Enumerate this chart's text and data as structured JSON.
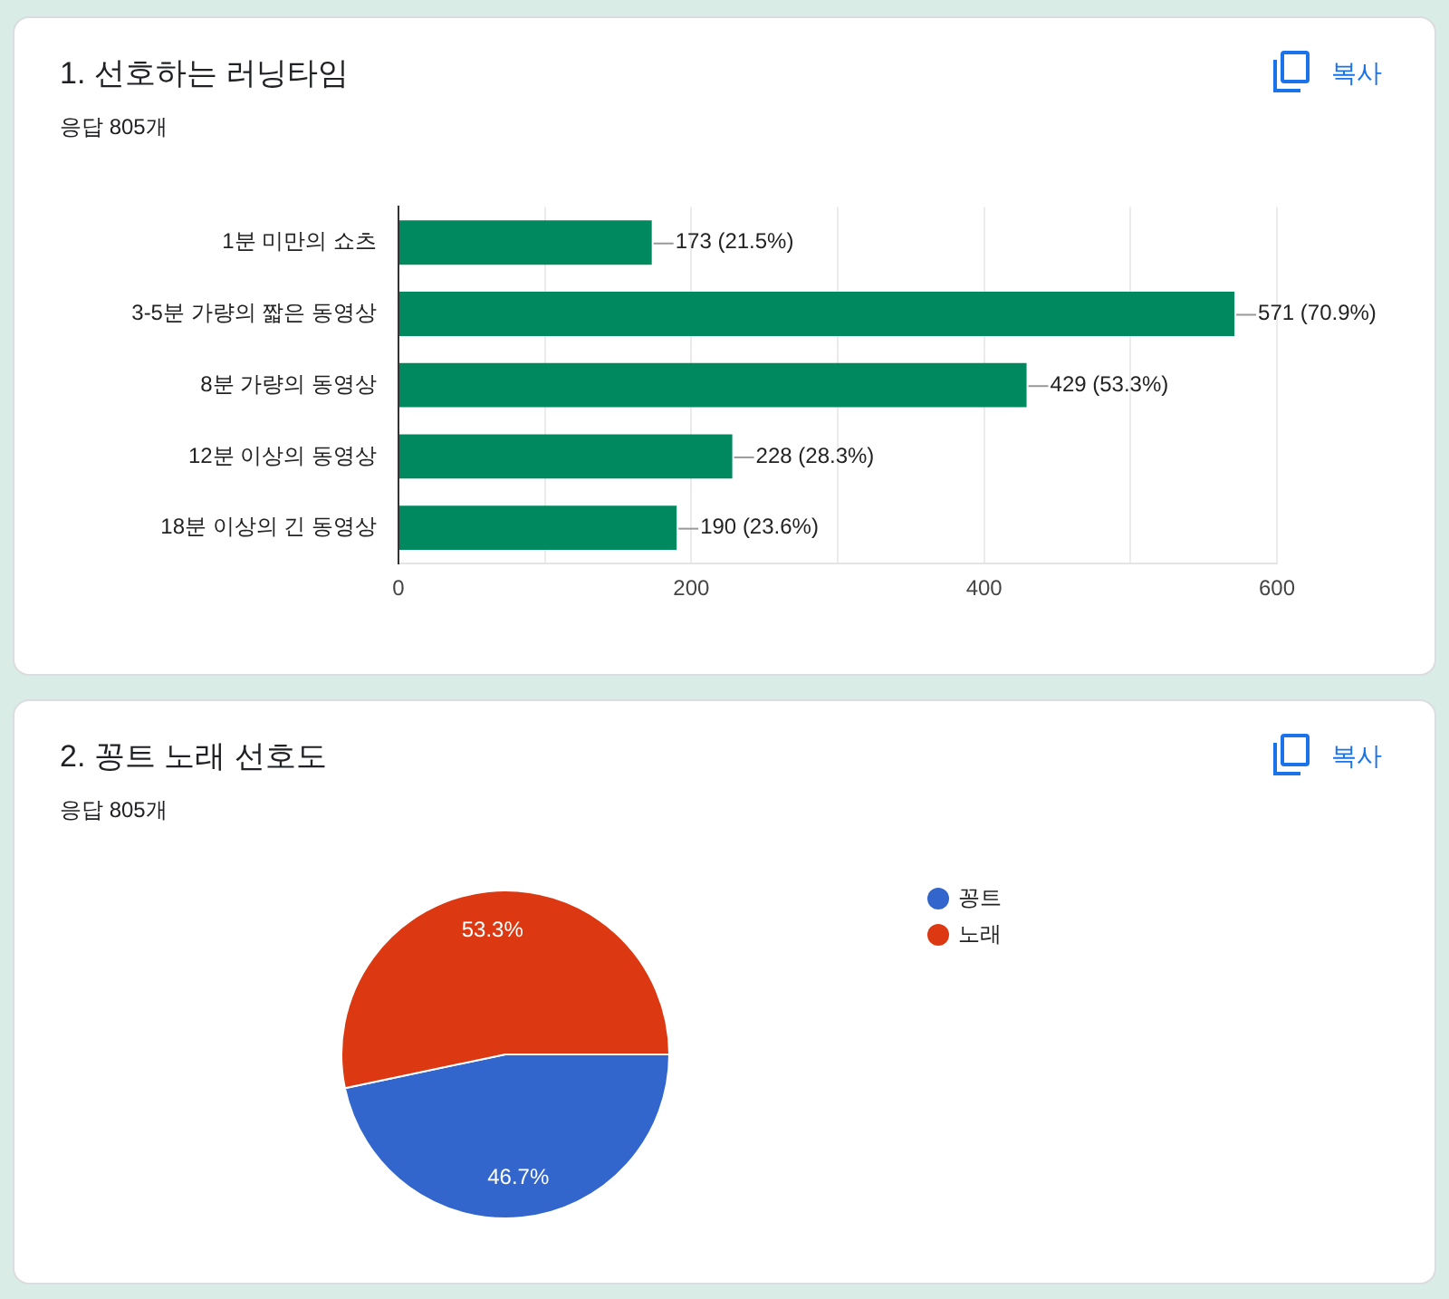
{
  "chart_data": [
    {
      "type": "bar",
      "title": "1. 선호하는 러닝타임",
      "subtitle": "응답 805개",
      "annotations": [
        "복사"
      ],
      "orientation": "horizontal",
      "categories": [
        "1분 미만의 쇼츠",
        "3-5분 가량의 짧은 동영상",
        "8분 가량의 동영상",
        "12분 이상의 동영상",
        "18분 이상의 긴 동영상"
      ],
      "values": [
        173,
        571,
        429,
        228,
        190
      ],
      "value_labels": [
        "173 (21.5%)",
        "571 (70.9%)",
        "429 (53.3%)",
        "228 (28.3%)",
        "190 (23.6%)"
      ],
      "color": "#00895e",
      "xlim": [
        0,
        600
      ],
      "xticks": [
        0,
        {
          "value": 100,
          "label": null
        },
        200,
        {
          "value": 300,
          "label": null
        },
        400,
        {
          "value": 500,
          "label": null
        },
        600
      ],
      "grid": "x"
    },
    {
      "type": "pie",
      "title": "2. 꽁트 노래 선호도",
      "subtitle": "응답 805개",
      "annotations": [
        "복사"
      ],
      "categories": [
        "꽁트",
        "노래"
      ],
      "values": [
        46.7,
        53.3
      ],
      "colors": [
        "#3366cc",
        "#dc3912"
      ],
      "value_labels": [
        "46.7%",
        "53.3%"
      ],
      "legend": "right"
    }
  ]
}
